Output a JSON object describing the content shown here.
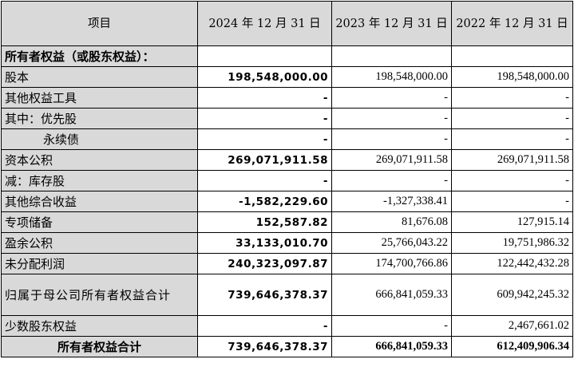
{
  "header": {
    "item": "项目",
    "col2024": "2024 年 12 月 31 日",
    "col2023": "2023 年 12 月 31 日",
    "col2022": "2022 年 12 月 31 日"
  },
  "section_title": "所有者权益（或股东权益）：",
  "rows": [
    {
      "label": "股本",
      "v2024": "198,548,000.00",
      "v2023": "198,548,000.00",
      "v2022": "198,548,000.00"
    },
    {
      "label": "其他权益工具",
      "v2024": "-",
      "v2023": "-",
      "v2022": "-"
    },
    {
      "label": "其中：优先股",
      "v2024": "-",
      "v2023": "-",
      "v2022": "-"
    },
    {
      "label": "永续债",
      "v2024": "-",
      "v2023": "-",
      "v2022": "-"
    },
    {
      "label": "资本公积",
      "v2024": "269,071,911.58",
      "v2023": "269,071,911.58",
      "v2022": "269,071,911.58"
    },
    {
      "label": "减：库存股",
      "v2024": "-",
      "v2023": "-",
      "v2022": "-"
    },
    {
      "label": "其他综合收益",
      "v2024": "-1,582,229.60",
      "v2023": "-1,327,338.41",
      "v2022": "-"
    },
    {
      "label": "专项储备",
      "v2024": "152,587.82",
      "v2023": "81,676.08",
      "v2022": "127,915.14"
    },
    {
      "label": "盈余公积",
      "v2024": "33,133,010.70",
      "v2023": "25,766,043.22",
      "v2022": "19,751,986.32"
    },
    {
      "label": "未分配利润",
      "v2024": "240,323,097.87",
      "v2023": "174,700,766.86",
      "v2022": "122,442,432.28"
    },
    {
      "label": "归属于母公司所有者权益合计",
      "v2024": "739,646,378.37",
      "v2023": "666,841,059.33",
      "v2022": "609,942,245.32"
    },
    {
      "label": "少数股东权益",
      "v2024": "-",
      "v2023": "-",
      "v2022": "2,467,661.02"
    }
  ],
  "total": {
    "label": "所有者权益合计",
    "v2024": "739,646,378.37",
    "v2023": "666,841,059.33",
    "v2022": "612,409,906.34"
  }
}
